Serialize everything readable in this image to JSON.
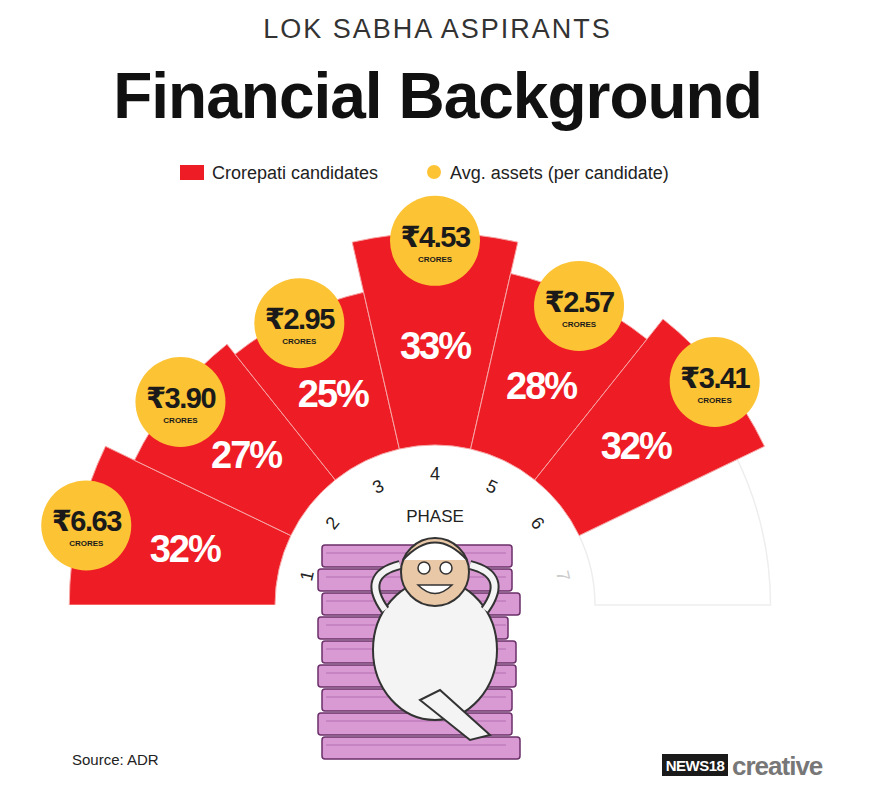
{
  "chart_data": {
    "type": "radial_bar",
    "subtitle": "LOK SABHA ASPIRANTS",
    "title": "Financial Background",
    "x_label": "PHASE",
    "categories": [
      "1",
      "2",
      "3",
      "4",
      "5",
      "6",
      "7"
    ],
    "ylim": [
      0,
      35
    ],
    "tick_labels": "x",
    "data_labels": true,
    "legend": "top",
    "series": [
      {
        "name": "Crorepati candidates",
        "color": "#ee1c25",
        "values": [
          32,
          27,
          25,
          33,
          28,
          32,
          null
        ],
        "value_labels": [
          "32%",
          "27%",
          "25%",
          "33%",
          "28%",
          "32%",
          null
        ]
      },
      {
        "name": "Avg. assets (per candidate)",
        "color": "#fcc334",
        "marker": "circle",
        "values": [
          6.63,
          3.9,
          2.95,
          4.53,
          2.57,
          3.41,
          null
        ],
        "value_labels": [
          "₹6.63",
          "₹3.90",
          "₹2.95",
          "₹4.53",
          "₹2.57",
          "₹3.41",
          null
        ],
        "unit": "CRORES"
      }
    ],
    "source": "Source: ADR",
    "logo": [
      "NEWS18",
      "creative"
    ]
  }
}
